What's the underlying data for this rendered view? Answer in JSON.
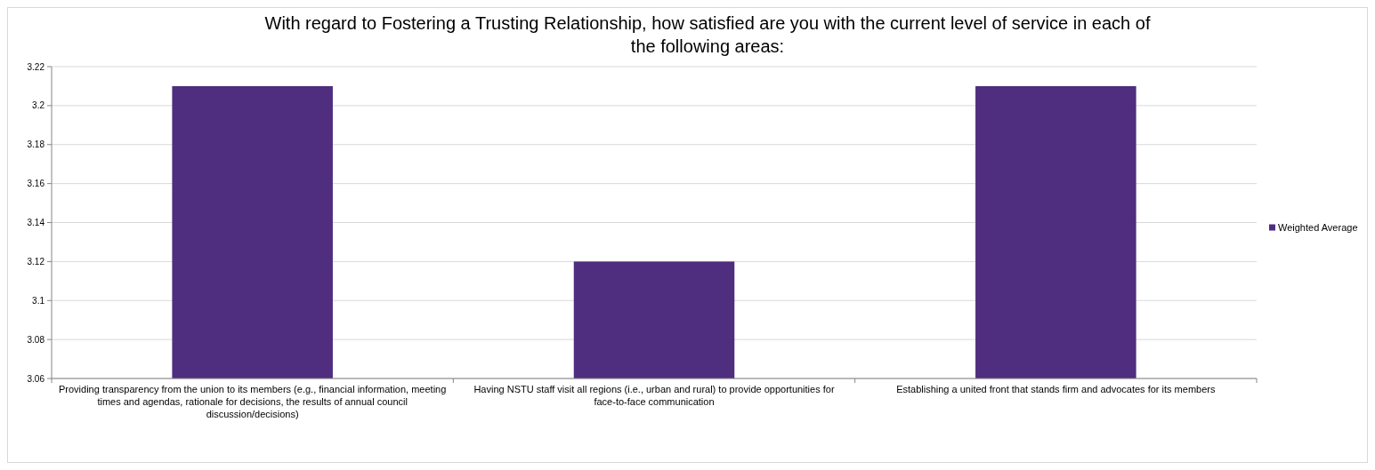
{
  "chart_data": {
    "type": "bar",
    "title": "With regard to Fostering a Trusting Relationship, how satisfied are you with the current level of service in each of the following areas:",
    "categories": [
      "Providing transparency from the union to its members (e.g., financial information, meeting times and agendas, rationale for decisions, the results of annual council discussion/decisions)",
      "Having NSTU staff visit all regions (i.e., urban and rural) to provide opportunities for face-to-face communication",
      "Establishing a united front that stands firm and advocates for its members"
    ],
    "series": [
      {
        "name": "Weighted Average",
        "color": "#4f2d7f",
        "values": [
          3.21,
          3.12,
          3.21
        ]
      }
    ],
    "ylim": [
      3.06,
      3.22
    ],
    "yticks": [
      3.06,
      3.08,
      3.1,
      3.12,
      3.14,
      3.16,
      3.18,
      3.2,
      3.22
    ],
    "grid": "y",
    "legend": "right"
  }
}
